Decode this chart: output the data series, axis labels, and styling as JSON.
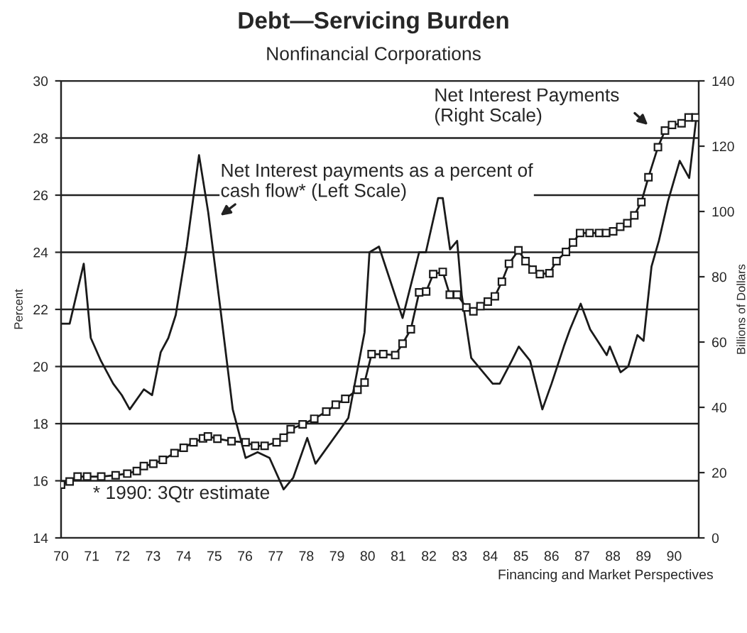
{
  "chart_data": {
    "type": "line",
    "title": "Debt—Servicing Burden",
    "subtitle": "Nonfinancial Corporations",
    "ylabel": "Percent",
    "y2label": "Billions of Dollars",
    "xlim": [
      70,
      90.8
    ],
    "xticks": [
      70,
      71,
      72,
      73,
      74,
      75,
      76,
      77,
      78,
      79,
      80,
      81,
      82,
      83,
      84,
      85,
      86,
      87,
      88,
      89,
      90
    ],
    "ylim": [
      14,
      30
    ],
    "yticks": [
      14,
      16,
      18,
      20,
      22,
      24,
      26,
      28,
      30
    ],
    "y2lim": [
      0,
      140
    ],
    "y2ticks": [
      0,
      20,
      40,
      60,
      80,
      100,
      120,
      140
    ],
    "grid": "y",
    "legend": false,
    "line_style": "solid",
    "series": [
      {
        "color": "#1a1a1a",
        "marker": "none",
        "x": [
          70.0,
          70.28,
          70.74,
          70.97,
          71.3,
          71.7,
          71.98,
          72.24,
          72.7,
          72.97,
          73.25,
          73.5,
          73.74,
          74.1,
          74.5,
          74.8,
          75.2,
          75.6,
          76.02,
          76.41,
          76.8,
          77.26,
          77.57,
          78.03,
          78.3,
          79.37,
          79.9,
          80.06,
          80.37,
          81.14,
          81.68,
          81.9,
          82.3,
          82.45,
          82.69,
          82.92,
          83.07,
          83.38,
          83.77,
          84.08,
          84.31,
          84.7,
          84.93,
          85.3,
          85.7,
          86.0,
          86.4,
          86.6,
          86.95,
          87.26,
          87.56,
          87.8,
          87.9,
          88.25,
          88.5,
          88.8,
          89.0,
          89.26,
          89.5,
          89.8,
          90.18,
          90.49,
          90.72
        ],
        "values": [
          21.5,
          21.5,
          23.6,
          21.0,
          20.2,
          19.4,
          19.0,
          18.5,
          19.2,
          19.0,
          20.5,
          21.0,
          21.8,
          24.2,
          27.4,
          25.4,
          22.0,
          18.5,
          16.8,
          17.0,
          16.8,
          15.7,
          16.1,
          17.5,
          16.6,
          18.2,
          21.2,
          24.0,
          24.2,
          21.7,
          24.0,
          24.0,
          25.9,
          25.9,
          24.1,
          24.4,
          22.5,
          20.3,
          19.8,
          19.4,
          19.4,
          20.2,
          20.7,
          20.2,
          18.5,
          19.4,
          20.7,
          21.3,
          22.2,
          21.3,
          20.8,
          20.4,
          20.7,
          19.8,
          20.0,
          21.1,
          20.9,
          23.5,
          24.4,
          25.8,
          27.2,
          26.6,
          28.7
        ]
      },
      {
        "color": "#1a1a1a",
        "marker": "square",
        "axis": "y2",
        "x": [
          70.0,
          70.28,
          70.54,
          70.85,
          71.31,
          71.78,
          72.16,
          72.47,
          72.7,
          73.01,
          73.32,
          73.7,
          74.0,
          74.32,
          74.63,
          74.79,
          75.1,
          75.56,
          76.02,
          76.33,
          76.64,
          77.03,
          77.26,
          77.49,
          77.88,
          78.26,
          78.65,
          78.96,
          79.27,
          79.67,
          79.9,
          80.13,
          80.51,
          80.9,
          81.14,
          81.41,
          81.68,
          81.91,
          82.14,
          82.45,
          82.68,
          82.92,
          83.22,
          83.45,
          83.68,
          83.92,
          84.15,
          84.38,
          84.61,
          84.92,
          85.15,
          85.38,
          85.62,
          85.93,
          86.16,
          86.47,
          86.7,
          86.93,
          87.24,
          87.55,
          87.78,
          88.01,
          88.24,
          88.47,
          88.7,
          88.93,
          89.16,
          89.47,
          89.7,
          89.93,
          90.24,
          90.47,
          90.7
        ],
        "values": [
          16.3,
          17.3,
          18.8,
          18.8,
          18.8,
          19.2,
          19.7,
          20.5,
          22.0,
          22.7,
          23.9,
          26.0,
          27.6,
          29.3,
          30.5,
          31.1,
          30.4,
          29.6,
          29.3,
          28.2,
          28.2,
          29.3,
          30.7,
          33.3,
          34.8,
          36.5,
          38.7,
          40.8,
          42.6,
          45.4,
          47.6,
          56.3,
          56.3,
          56.0,
          59.5,
          63.9,
          75.2,
          75.5,
          80.8,
          81.5,
          74.5,
          74.5,
          70.6,
          69.4,
          71.0,
          72.4,
          74.0,
          78.5,
          84.0,
          88.1,
          84.8,
          82.2,
          80.8,
          81.1,
          84.8,
          87.6,
          90.5,
          93.4,
          93.4,
          93.4,
          93.4,
          93.9,
          95.3,
          96.4,
          98.8,
          102.9,
          110.5,
          119.7,
          124.8,
          126.5,
          127.0,
          128.8,
          128.8
        ]
      }
    ],
    "annotations": [
      "Net Interest payments as a percent of\ncash flow* (Left Scale)",
      "Net Interest Payments\n(Right Scale)",
      "* 1990: 3Qtr estimate",
      "Financing and Market Perspectives"
    ]
  }
}
